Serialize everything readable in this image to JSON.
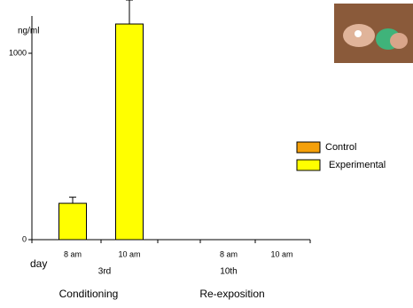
{
  "chart_data": {
    "type": "bar",
    "y_label": "ng/ml",
    "categories": [
      "8 am",
      "10 am",
      "8 am",
      "10 am"
    ],
    "x_prefix_label": "day",
    "x_groups": [
      "3rd",
      "10th"
    ],
    "phases": [
      "Conditioning",
      "Re-exposition"
    ],
    "series": [
      {
        "name": "Control",
        "color": "#f5a00a",
        "values": [
          null,
          null,
          null,
          null
        ]
      },
      {
        "name": "Experimental",
        "color": "#ffff00",
        "values": [
          195,
          1157,
          null,
          null
        ],
        "errors": [
          33,
          129,
          null,
          null
        ]
      }
    ],
    "ylim": [
      0,
      1200
    ],
    "yticks": [
      0,
      1000
    ]
  }
}
